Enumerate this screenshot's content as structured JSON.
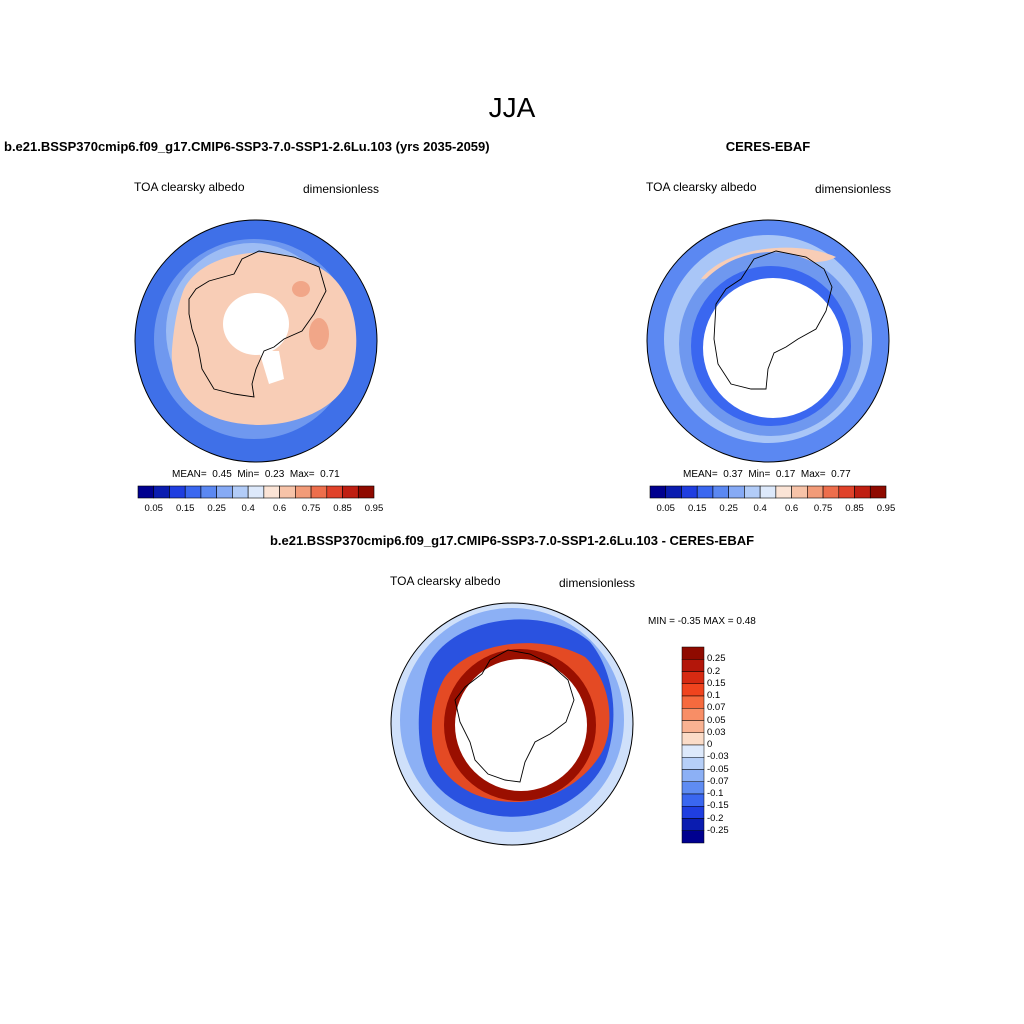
{
  "figure": {
    "title": "JJA"
  },
  "panels": [
    {
      "id": "model",
      "title": "b.e21.BSSP370cmip6.f09_g17.CMIP6-SSP3-7.0-SSP1-2.6Lu.103 (yrs 2035-2059)",
      "variable": "TOA clearsky albedo",
      "units": "dimensionless",
      "stats": {
        "mean_label": "MEAN=",
        "mean": "0.45",
        "min_label": "Min=",
        "min": "0.23",
        "max_label": "Max=",
        "max": "0.71"
      }
    },
    {
      "id": "obs",
      "title": "CERES-EBAF",
      "variable": "TOA clearsky albedo",
      "units": "dimensionless",
      "stats": {
        "mean_label": "MEAN=",
        "mean": "0.37",
        "min_label": "Min=",
        "min": "0.17",
        "max_label": "Max=",
        "max": "0.77"
      }
    },
    {
      "id": "diff",
      "title": "b.e21.BSSP370cmip6.f09_g17.CMIP6-SSP3-7.0-SSP1-2.6Lu.103 - CERES-EBAF",
      "variable": "TOA clearsky albedo",
      "units": "dimensionless",
      "minmax": {
        "min_label": "MIN =",
        "min": "-0.35",
        "max_label": "MAX =",
        "max": "0.48"
      }
    }
  ],
  "colorbars": {
    "albedo": {
      "tick_labels": [
        "0.05",
        "0.15",
        "0.25",
        "0.4",
        "0.6",
        "0.75",
        "0.85",
        "0.95"
      ],
      "colors": [
        "#00008f",
        "#0a1cb0",
        "#1f3ee0",
        "#3a67f0",
        "#5b88f2",
        "#86aaf5",
        "#b2ccf8",
        "#dde9fb",
        "#fbe4d6",
        "#f7c3a8",
        "#f29b78",
        "#ed6e4c",
        "#e0422a",
        "#bf1f12",
        "#8f0a00"
      ]
    },
    "difference": {
      "tick_labels": [
        "0.25",
        "0.2",
        "0.15",
        "0.1",
        "0.07",
        "0.05",
        "0.03",
        "0",
        "-0.03",
        "-0.05",
        "-0.07",
        "-0.1",
        "-0.15",
        "-0.2",
        "-0.25"
      ],
      "colors": [
        "#8f0a00",
        "#b3160a",
        "#d62a12",
        "#f0441e",
        "#f66a3e",
        "#f88e66",
        "#f9b292",
        "#fbdcc8",
        "#dde9fb",
        "#b6cff8",
        "#8cb0f5",
        "#5f8cf2",
        "#3a67f0",
        "#1f3ee0",
        "#0a1cb0",
        "#00008f"
      ]
    }
  },
  "map_colors": {
    "land_white": "#ffffff",
    "coastline": "#000000",
    "model_ocean_outer": "#3f70e8",
    "model_ocean_mid": "#6f98ef",
    "model_ocean_inner": "#9dbcf4",
    "model_ice": "#f8cdb6",
    "model_ice_dark": "#f1a688",
    "obs_outer": "#5b88f2",
    "obs_mid": "#a9c6f7",
    "obs_warm": "#f8cdb6",
    "diff_ring": "#9a0f00",
    "diff_warm": "#e44a24",
    "diff_cool": "#2a52e0",
    "diff_pale": "#cfe0fa"
  }
}
